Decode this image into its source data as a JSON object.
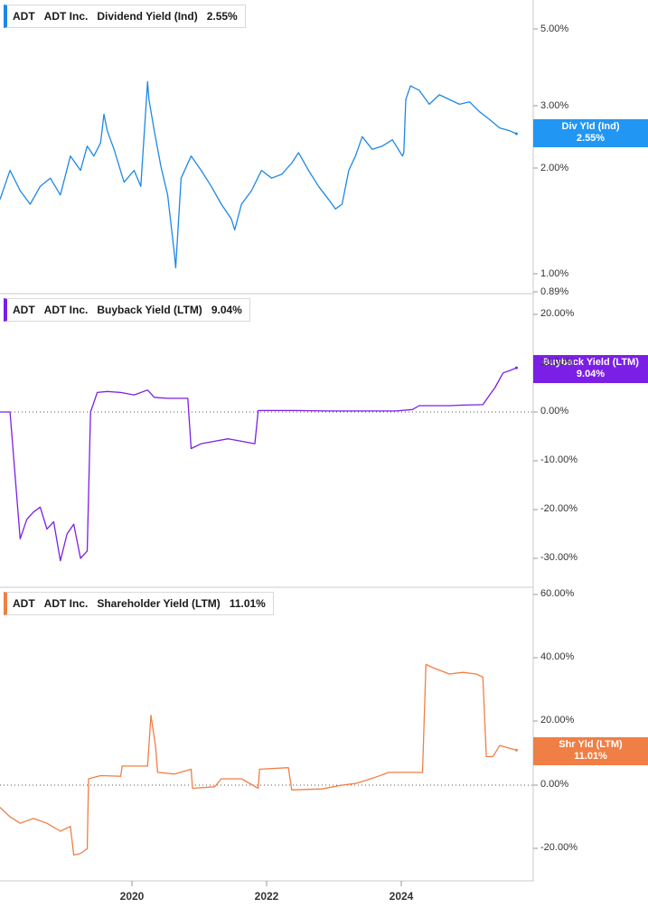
{
  "colors": {
    "dividend": "#1e88e5",
    "buyback": "#7c1fe6",
    "shareholder": "#f07f45",
    "grid": "#d0d0d0",
    "zero": "#555555"
  },
  "panels": [
    {
      "ticker": "ADT",
      "company": "ADT Inc.",
      "metric": "Dividend Yield (Ind)",
      "value": "2.55%",
      "badge_line1": "Div Yld (Ind)",
      "badge_line2": "2.55%",
      "ticks": [
        "5.00%",
        "3.00%",
        "2.00%",
        "1.00%",
        "0.89%"
      ]
    },
    {
      "ticker": "ADT",
      "company": "ADT Inc.",
      "metric": "Buyback Yield (LTM)",
      "value": "9.04%",
      "badge_line1": "Buyback Yield (LTM)",
      "badge_line2": "9.04%",
      "ticks": [
        "20.00%",
        "10.00%",
        "0.00%",
        "-10.00%",
        "-20.00%",
        "-30.00%"
      ]
    },
    {
      "ticker": "ADT",
      "company": "ADT Inc.",
      "metric": "Shareholder Yield (LTM)",
      "value": "11.01%",
      "badge_line1": "Shr Yld (LTM)",
      "badge_line2": "11.01%",
      "ticks": [
        "60.00%",
        "40.00%",
        "20.00%",
        "0.00%",
        "-20.00%"
      ]
    }
  ],
  "x_ticks": [
    "2020",
    "2022",
    "2024"
  ],
  "chart_data": [
    {
      "type": "line",
      "scale": "log",
      "ylim": [
        0.89,
        6.0
      ],
      "xlim": [
        2018.0,
        2025.95
      ],
      "series": [
        {
          "name": "Div Yld (Ind)",
          "x": [
            2018.0,
            2018.15,
            2018.3,
            2018.45,
            2018.6,
            2018.75,
            2018.9,
            2019.05,
            2019.2,
            2019.3,
            2019.4,
            2019.5,
            2019.55,
            2019.6,
            2019.7,
            2019.85,
            2020.0,
            2020.1,
            2020.2,
            2020.22,
            2020.3,
            2020.4,
            2020.5,
            2020.6,
            2020.62,
            2020.7,
            2020.85,
            2021.0,
            2021.15,
            2021.3,
            2021.45,
            2021.5,
            2021.6,
            2021.75,
            2021.9,
            2022.05,
            2022.2,
            2022.35,
            2022.45,
            2022.6,
            2022.75,
            2022.9,
            2023.0,
            2023.1,
            2023.2,
            2023.3,
            2023.4,
            2023.55,
            2023.7,
            2023.85,
            2024.0,
            2024.02,
            2024.05,
            2024.12,
            2024.25,
            2024.4,
            2024.55,
            2024.7,
            2024.85,
            2025.0,
            2025.15,
            2025.3,
            2025.45,
            2025.6,
            2025.7
          ],
          "y": [
            1.65,
            2.0,
            1.75,
            1.6,
            1.8,
            1.9,
            1.7,
            2.2,
            2.0,
            2.35,
            2.2,
            2.4,
            2.9,
            2.6,
            2.3,
            1.85,
            2.0,
            1.8,
            3.6,
            3.2,
            2.6,
            2.05,
            1.7,
            1.15,
            1.05,
            1.9,
            2.2,
            2.0,
            1.8,
            1.6,
            1.45,
            1.35,
            1.6,
            1.75,
            2.0,
            1.9,
            1.95,
            2.1,
            2.25,
            2.0,
            1.8,
            1.65,
            1.55,
            1.6,
            2.0,
            2.2,
            2.5,
            2.3,
            2.35,
            2.45,
            2.2,
            2.25,
            3.2,
            3.5,
            3.4,
            3.1,
            3.3,
            3.2,
            3.1,
            3.15,
            2.95,
            2.8,
            2.65,
            2.6,
            2.55
          ]
        }
      ]
    },
    {
      "type": "line",
      "ylim": [
        -33,
        24
      ],
      "xlim": [
        2018.0,
        2025.95
      ],
      "series": [
        {
          "name": "Buyback Yield (LTM)",
          "x": [
            2018.0,
            2018.15,
            2018.3,
            2018.4,
            2018.5,
            2018.6,
            2018.7,
            2018.8,
            2018.9,
            2019.0,
            2019.1,
            2019.2,
            2019.3,
            2019.35,
            2019.45,
            2019.6,
            2019.8,
            2020.0,
            2020.2,
            2020.3,
            2020.5,
            2020.8,
            2020.85,
            2021.0,
            2021.2,
            2021.4,
            2021.6,
            2021.8,
            2021.85,
            2022.4,
            2022.9,
            2023.4,
            2023.9,
            2024.15,
            2024.25,
            2024.7,
            2024.9,
            2025.2,
            2025.3,
            2025.38,
            2025.5,
            2025.6,
            2025.7
          ],
          "y": [
            0.0,
            0.0,
            -26.0,
            -22.0,
            -20.5,
            -19.5,
            -24.0,
            -22.5,
            -30.5,
            -25.0,
            -23.0,
            -30.0,
            -28.5,
            0.0,
            4.0,
            4.2,
            4.0,
            3.5,
            4.5,
            3.0,
            2.8,
            2.8,
            -7.5,
            -6.5,
            -6.0,
            -5.5,
            -6.0,
            -6.5,
            0.3,
            0.3,
            0.2,
            0.2,
            0.2,
            0.5,
            1.3,
            1.3,
            1.4,
            1.5,
            3.5,
            5.0,
            8.0,
            8.5,
            9.04
          ]
        }
      ]
    },
    {
      "type": "line",
      "ylim": [
        -30,
        63
      ],
      "xlim": [
        2018.0,
        2025.95
      ],
      "series": [
        {
          "name": "Shr Yld (LTM)",
          "x": [
            2018.0,
            2018.15,
            2018.3,
            2018.5,
            2018.7,
            2018.9,
            2019.05,
            2019.1,
            2019.2,
            2019.3,
            2019.32,
            2019.5,
            2019.8,
            2019.82,
            2020.2,
            2020.25,
            2020.32,
            2020.35,
            2020.6,
            2020.85,
            2020.87,
            2021.2,
            2021.3,
            2021.6,
            2021.85,
            2021.87,
            2022.3,
            2022.35,
            2022.8,
            2023.1,
            2023.3,
            2023.6,
            2023.8,
            2024.1,
            2024.3,
            2024.35,
            2024.45,
            2024.7,
            2024.9,
            2025.1,
            2025.2,
            2025.25,
            2025.35,
            2025.45,
            2025.7
          ],
          "y": [
            -7.0,
            -10.0,
            -12.0,
            -10.5,
            -12.0,
            -14.5,
            -13.0,
            -22.0,
            -21.5,
            -20.0,
            2.0,
            3.0,
            2.8,
            6.0,
            6.0,
            22.0,
            12.0,
            4.0,
            3.5,
            5.0,
            -1.0,
            -0.5,
            2.0,
            2.0,
            -1.0,
            5.0,
            5.5,
            -1.5,
            -1.2,
            0.0,
            0.5,
            2.5,
            4.0,
            4.0,
            4.0,
            38.0,
            37.0,
            35.0,
            35.5,
            35.0,
            34.0,
            9.0,
            9.0,
            12.5,
            11.01
          ]
        }
      ]
    }
  ]
}
